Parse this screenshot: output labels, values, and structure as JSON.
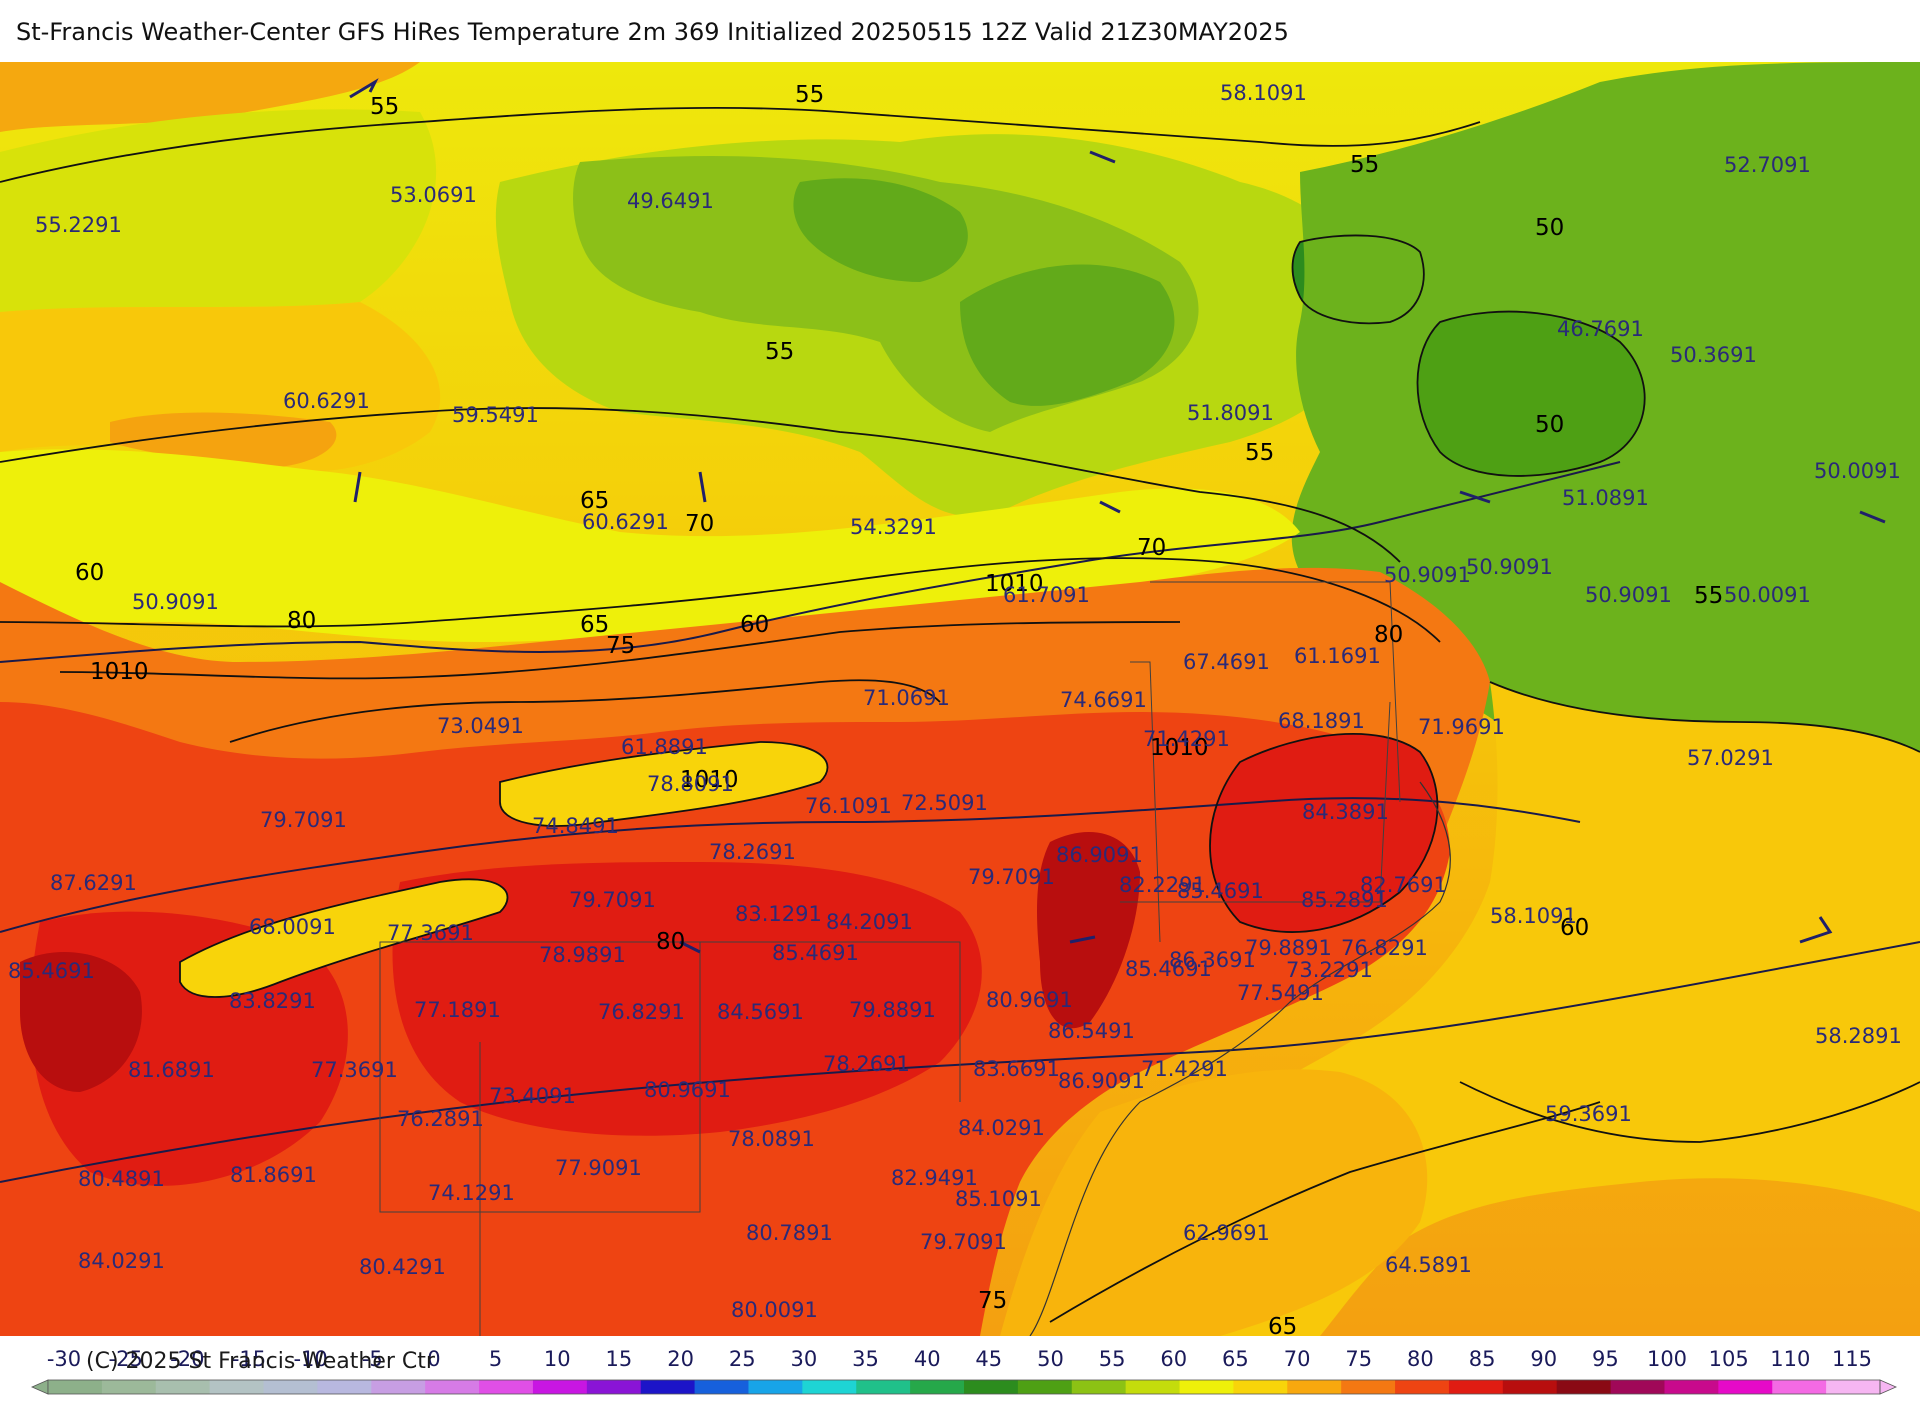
{
  "title": "St-Francis Weather-Center GFS HiRes Temperature 2m  369 Initialized 20250515 12Z Valid 21Z30MAY2025",
  "copyright": "(C) 2025 St Francis Weather Ctr",
  "legend": {
    "ticks": [
      "-30",
      "-25",
      "-20",
      "-15",
      "-10",
      "-5",
      "0",
      "5",
      "10",
      "15",
      "20",
      "25",
      "30",
      "35",
      "40",
      "45",
      "50",
      "55",
      "60",
      "65",
      "70",
      "75",
      "80",
      "85",
      "90",
      "95",
      "100",
      "105",
      "110",
      "115"
    ],
    "colors": [
      "#8db08a",
      "#9cb99a",
      "#a8bfae",
      "#b3c3c4",
      "#b4bfd2",
      "#b8b8df",
      "#c79ee3",
      "#d67be6",
      "#e04fe6",
      "#c816e2",
      "#8a14d6",
      "#1c14c8",
      "#1660dc",
      "#18a4e8",
      "#1ed4d4",
      "#20c08a",
      "#26a84a",
      "#2c8c1e",
      "#4ea014",
      "#8cc214",
      "#c4dc0c",
      "#eef00a",
      "#f8d40a",
      "#f8a80e",
      "#f47812",
      "#ee4412",
      "#e01c12",
      "#b80e0e",
      "#8a0a14",
      "#a00858",
      "#c80a8c",
      "#e60ac8",
      "#f46ae4",
      "#f6b6f2"
    ]
  },
  "isotherm_labels": [
    "55",
    "55",
    "55",
    "55",
    "50",
    "50",
    "55",
    "65",
    "70",
    "60",
    "60",
    "65",
    "75",
    "80",
    "70",
    "80",
    "55",
    "60",
    "80",
    "65",
    "75"
  ],
  "isobar_labels": [
    "1010",
    "1010",
    "1010",
    "1010"
  ],
  "point_values": [
    "58.1091",
    "52.7091",
    "55.2291",
    "53.0691",
    "49.6491",
    "46.7691",
    "50.3691",
    "60.6291",
    "59.5491",
    "51.8091",
    "50.0091",
    "60.6291",
    "54.3291",
    "51.0891",
    "50.9091",
    "50.9091",
    "61.7091",
    "50.9091",
    "50.0091",
    "50.9091",
    "67.4691",
    "61.1691",
    "71.0691",
    "74.6691",
    "73.0491",
    "61.8891",
    "68.1891",
    "71.9691",
    "57.0291",
    "71.4291",
    "78.8091",
    "76.1091",
    "72.5091",
    "84.3891",
    "79.7091",
    "74.8491",
    "87.6291",
    "78.2691",
    "86.9091",
    "82.2291",
    "79.7091",
    "79.7091",
    "85.4691",
    "85.2891",
    "82.7691",
    "83.1291",
    "84.2091",
    "58.1091",
    "68.0091",
    "77.3691",
    "85.4691",
    "79.8891",
    "76.8291",
    "78.9891",
    "85.4691",
    "85.4691",
    "86.3691",
    "73.2291",
    "77.5491",
    "83.8291",
    "77.1891",
    "76.8291",
    "84.5691",
    "79.8891",
    "80.9691",
    "86.5491",
    "58.2891",
    "78.2691",
    "83.6691",
    "71.4291",
    "81.6891",
    "77.3691",
    "86.9091",
    "73.4091",
    "80.9691",
    "76.2891",
    "59.3691",
    "84.0291",
    "78.0891",
    "80.4891",
    "81.8691",
    "77.9091",
    "82.9491",
    "74.1291",
    "85.1091",
    "80.7891",
    "62.9691",
    "84.0291",
    "79.7091",
    "80.4291",
    "64.5891",
    "80.0091"
  ]
}
